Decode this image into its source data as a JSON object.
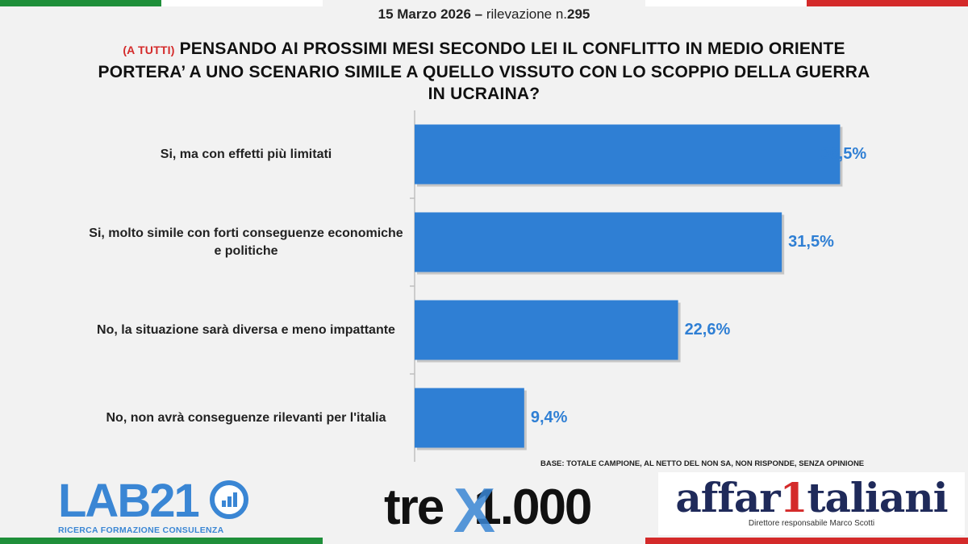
{
  "header": {
    "date": "15 Marzo 2026",
    "dash": "–",
    "survey_word": "rilevazione n.",
    "survey_num": "295"
  },
  "question": {
    "tag": "(A TUTTI)",
    "text_line1": "PENSANDO AI PROSSIMI MESI SECONDO LEI IL CONFLITTO IN MEDIO ORIENTE",
    "text_line2": "PORTERA’  A UNO SCENARIO SIMILE A QUELLO VISSUTO CON LO  SCOPPIO DELLA GUERRA",
    "text_line3": "IN UCRAINA?"
  },
  "chart_data": {
    "type": "bar",
    "orientation": "horizontal",
    "categories": [
      "Si, ma con effetti più limitati",
      "Si, molto simile con forti conseguenze economiche e politiche",
      "No, la situazione sarà diversa e meno impattante",
      "No, non avrà conseguenze rilevanti per l'italia"
    ],
    "values": [
      36.5,
      31.5,
      22.6,
      9.4
    ],
    "value_labels": [
      "36,5%",
      "31,5%",
      "22,6%",
      "9,4%"
    ],
    "xlim": [
      0,
      40
    ],
    "bar_color": "#2f7fd4",
    "label_color": "#2f7fd4",
    "grid": false
  },
  "base_note": "BASE: TOTALE CAMPIONE, AL NETTO DEL NON SA, NON RISPONDE, SENZA OPINIONE",
  "logos": {
    "lab": {
      "word": "LAB21",
      "sub": "RICERCA FORMAZIONE CONSULENZA",
      "color": "#3a86d4"
    },
    "tre": {
      "word": "tre",
      "x": "X",
      "num": "1.000"
    },
    "aff": {
      "word_a": "affar",
      "one": "1",
      "word_b": "taliani",
      "sub": "Direttore responsabile Marco Scotti"
    }
  },
  "colors": {
    "flag_green": "#1f8f3a",
    "flag_red": "#d42a2a"
  }
}
